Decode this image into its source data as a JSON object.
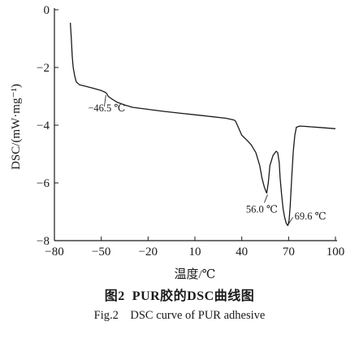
{
  "chart_data": {
    "type": "line",
    "xlabel": "温度/℃",
    "ylabel": "DSC/(mW·mg⁻¹)",
    "xlim": [
      -80,
      100
    ],
    "ylim": [
      -8,
      0
    ],
    "xticks": [
      -80,
      -50,
      -20,
      10,
      40,
      70,
      100
    ],
    "yticks": [
      0,
      -2,
      -4,
      -6,
      -8
    ],
    "xtick_labels": [
      "−80",
      "−50",
      "−20",
      "10",
      "40",
      "70",
      "100"
    ],
    "ytick_labels": [
      "0",
      "−2",
      "−4",
      "−6",
      "−8"
    ],
    "grid": false,
    "legend": "none",
    "series": [
      {
        "x": [
          -69.8,
          -69.2,
          -68.6,
          -68.0,
          -67.0,
          -66.0,
          -64.0,
          -60.0,
          -55.0,
          -50.0,
          -47.5,
          -46.5,
          -45.5,
          -43.0,
          -40.0,
          -35.0,
          -30.0,
          -20.0,
          -10.0,
          0.0,
          10.0,
          20.0,
          30.0,
          35.0,
          36.0,
          38.0,
          40.0,
          43.0,
          46.0,
          49.0,
          51.5,
          53.0,
          54.5,
          55.5,
          56.0,
          57.0,
          58.0,
          60.0,
          62.0,
          63.0,
          64.0,
          64.5,
          65.5,
          66.5,
          67.5,
          68.5,
          69.3,
          69.6,
          70.3,
          71.0,
          72.0,
          73.0,
          74.0,
          75.0,
          77.0,
          80.0,
          85.0,
          90.0,
          100.0
        ],
        "y": [
          -0.45,
          -1.0,
          -1.6,
          -2.0,
          -2.3,
          -2.5,
          -2.6,
          -2.65,
          -2.72,
          -2.8,
          -2.86,
          -2.9,
          -3.0,
          -3.1,
          -3.2,
          -3.3,
          -3.38,
          -3.45,
          -3.52,
          -3.58,
          -3.64,
          -3.7,
          -3.76,
          -3.82,
          -3.86,
          -4.1,
          -4.35,
          -4.5,
          -4.68,
          -4.95,
          -5.4,
          -5.85,
          -6.15,
          -6.3,
          -6.35,
          -6.0,
          -5.4,
          -5.05,
          -4.9,
          -4.95,
          -5.3,
          -5.8,
          -6.4,
          -6.9,
          -7.2,
          -7.4,
          -7.47,
          -7.47,
          -7.3,
          -6.8,
          -5.8,
          -4.9,
          -4.35,
          -4.07,
          -4.03,
          -4.04,
          -4.06,
          -4.08,
          -4.12
        ],
        "color": "#1a1a1a"
      }
    ],
    "annotations": [
      {
        "text": "−46.5 ℃",
        "x": -46.5,
        "y": -2.9
      },
      {
        "text": "56.0 ℃",
        "x": 56.0,
        "y": -6.35
      },
      {
        "text": "69.6 ℃",
        "x": 69.6,
        "y": -7.47
      }
    ]
  },
  "caption": {
    "cn_fig": "图2",
    "cn_title": "PUR胶的DSC曲线图",
    "en_fig": "Fig.2",
    "en_title": "DSC curve of PUR adhesive"
  }
}
